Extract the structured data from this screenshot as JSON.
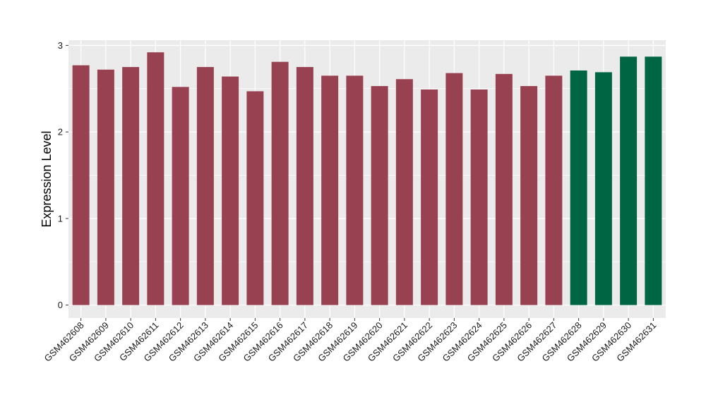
{
  "chart_data": {
    "type": "bar",
    "title": "",
    "xlabel": "",
    "ylabel": "Expression Level",
    "ylim": [
      -0.15,
      3.06
    ],
    "yticks": [
      0,
      1,
      2,
      3
    ],
    "grid": true,
    "categories": [
      "GSM462608",
      "GSM462609",
      "GSM462610",
      "GSM462611",
      "GSM462612",
      "GSM462613",
      "GSM462614",
      "GSM462615",
      "GSM462616",
      "GSM462617",
      "GSM462618",
      "GSM462619",
      "GSM462620",
      "GSM462621",
      "GSM462622",
      "GSM462623",
      "GSM462624",
      "GSM462625",
      "GSM462626",
      "GSM462627",
      "GSM462628",
      "GSM462629",
      "GSM462630",
      "GSM462631"
    ],
    "values": [
      2.77,
      2.72,
      2.75,
      2.92,
      2.52,
      2.75,
      2.64,
      2.47,
      2.81,
      2.75,
      2.65,
      2.65,
      2.53,
      2.61,
      2.49,
      2.68,
      2.49,
      2.67,
      2.53,
      2.65,
      2.71,
      2.69,
      2.87,
      2.87
    ],
    "groups": [
      0,
      0,
      0,
      0,
      0,
      0,
      0,
      0,
      0,
      0,
      0,
      0,
      0,
      0,
      0,
      0,
      0,
      0,
      0,
      0,
      1,
      1,
      1,
      1
    ],
    "group_colors": [
      "#984150",
      "#006543"
    ],
    "panel_background": "#ebebeb",
    "grid_color": "#ffffff"
  }
}
